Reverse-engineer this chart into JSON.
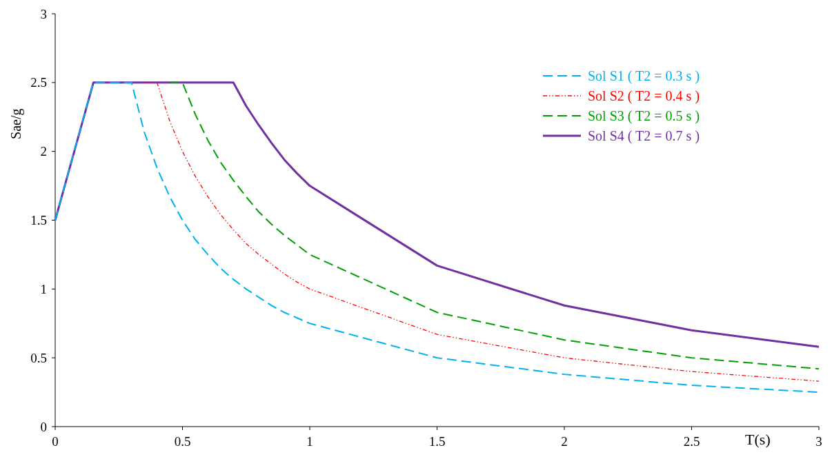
{
  "chart_data": {
    "type": "line",
    "xlabel": "T(s)",
    "ylabel": "Sae/g",
    "x": [
      0,
      0.15,
      0.3,
      0.35,
      0.4,
      0.45,
      0.5,
      0.55,
      0.6,
      0.65,
      0.7,
      0.75,
      0.8,
      0.85,
      0.9,
      0.95,
      1,
      1.5,
      2,
      2.5,
      3
    ],
    "series": [
      {
        "name": "Sol S1 ( T2 = 0.3 s )",
        "color": "#00b0f0",
        "line_style": "dashed",
        "values": [
          1.5,
          2.5,
          2.5,
          2.14,
          1.88,
          1.67,
          1.5,
          1.36,
          1.25,
          1.15,
          1.07,
          1.0,
          0.94,
          0.88,
          0.83,
          0.79,
          0.75,
          0.5,
          0.38,
          0.3,
          0.25
        ]
      },
      {
        "name": "Sol S2 ( T2 = 0.4 s )",
        "color": "#ff0000",
        "line_style": "dotted",
        "values": [
          null,
          null,
          null,
          2.5,
          2.5,
          2.22,
          2.0,
          1.82,
          1.67,
          1.54,
          1.43,
          1.33,
          1.25,
          1.18,
          1.11,
          1.05,
          1.0,
          0.67,
          0.5,
          0.4,
          0.33
        ]
      },
      {
        "name": "Sol S3 ( T2 = 0.5 s )",
        "color": "#00a000",
        "line_style": "dashed",
        "values": [
          null,
          null,
          null,
          null,
          null,
          2.5,
          2.5,
          2.27,
          2.08,
          1.92,
          1.79,
          1.67,
          1.56,
          1.47,
          1.39,
          1.32,
          1.25,
          0.83,
          0.63,
          0.5,
          0.42
        ]
      },
      {
        "name": "Sol S4 ( T2 = 0.7 s )",
        "color": "#7030a0",
        "line_style": "solid",
        "values": [
          1.5,
          2.5,
          2.5,
          2.5,
          2.5,
          2.5,
          2.5,
          2.5,
          2.5,
          2.5,
          2.5,
          2.33,
          2.19,
          2.06,
          1.94,
          1.84,
          1.75,
          1.17,
          0.88,
          0.7,
          0.58
        ]
      }
    ],
    "xlim": [
      0,
      3
    ],
    "xticks": [
      0,
      0.5,
      1,
      1.5,
      2,
      2.5,
      3
    ],
    "ylim": [
      0,
      3
    ],
    "yticks": [
      0,
      0.5,
      1,
      1.5,
      2,
      2.5,
      3
    ],
    "grid": false,
    "legend": "top right",
    "marker": "none"
  }
}
